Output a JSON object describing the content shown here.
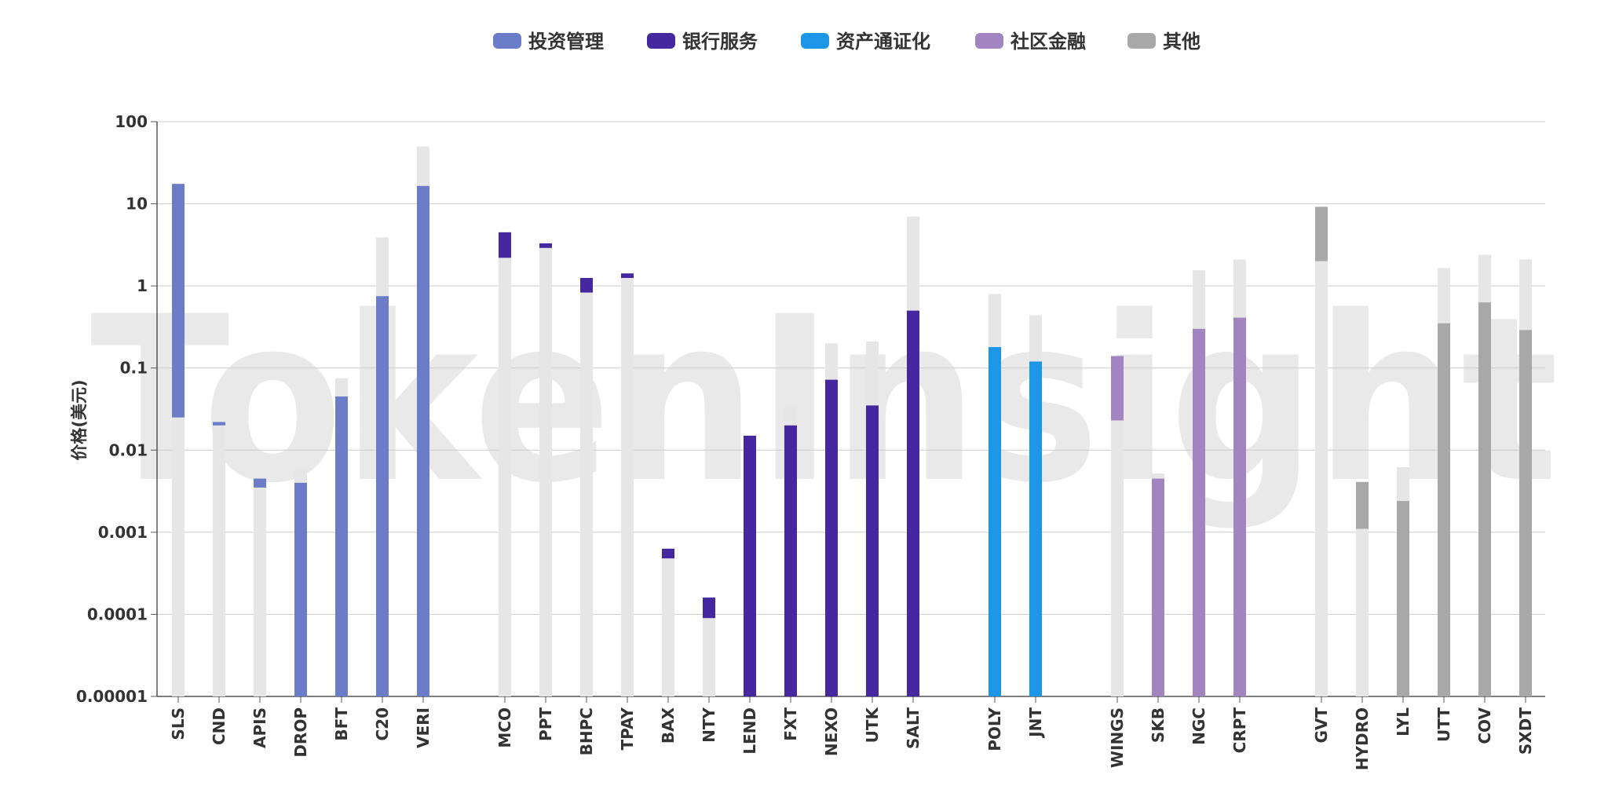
{
  "watermark": "TokenInsight",
  "chart_data": {
    "type": "bar",
    "scale": "log",
    "ylabel": "价格(美元)",
    "ylim": [
      1e-05,
      100
    ],
    "yticks": [
      {
        "value": 100,
        "label": "100"
      },
      {
        "value": 10,
        "label": "10"
      },
      {
        "value": 1,
        "label": "1"
      },
      {
        "value": 0.1,
        "label": "0.1"
      },
      {
        "value": 0.01,
        "label": "0.01"
      },
      {
        "value": 0.001,
        "label": "0.001"
      },
      {
        "value": 0.0001,
        "label": "0.0001"
      },
      {
        "value": 1e-05,
        "label": "0.00001"
      }
    ],
    "grid": true,
    "legend_position": "top",
    "groups": [
      {
        "name": "投资管理",
        "color": "#6b7dc8"
      },
      {
        "name": "银行服务",
        "color": "#4527a0"
      },
      {
        "name": "资产通证化",
        "color": "#1e96e8"
      },
      {
        "name": "社区金融",
        "color": "#a285c0"
      },
      {
        "name": "其他",
        "color": "#a8a8a8"
      }
    ],
    "background_bar_color": "#e6e6e6",
    "tokens": [
      {
        "label": "SLS",
        "group": 0,
        "low": 0.025,
        "high": 17.5
      },
      {
        "label": "CND",
        "group": 0,
        "low": 0.02,
        "high": 0.022
      },
      {
        "label": "APIS",
        "group": 0,
        "low": 0.0035,
        "high": 0.0045
      },
      {
        "label": "DROP",
        "group": 0,
        "high": 0.004,
        "peak": 0.006
      },
      {
        "label": "BFT",
        "group": 0,
        "high": 0.045,
        "peak": 0.075
      },
      {
        "label": "C20",
        "group": 0,
        "high": 0.75,
        "peak": 3.9
      },
      {
        "label": "VERI",
        "group": 0,
        "high": 16.5,
        "peak": 50
      },
      {
        "label": "MCO",
        "group": 1,
        "low": 2.2,
        "high": 4.5
      },
      {
        "label": "PPT",
        "group": 1,
        "low": 2.9,
        "high": 3.3
      },
      {
        "label": "BHPC",
        "group": 1,
        "low": 0.83,
        "high": 1.25
      },
      {
        "label": "TPAY",
        "group": 1,
        "low": 1.25,
        "high": 1.42
      },
      {
        "label": "BAX",
        "group": 1,
        "low": 0.00048,
        "high": 0.00063
      },
      {
        "label": "NTY",
        "group": 1,
        "low": 9e-05,
        "high": 0.00016
      },
      {
        "label": "LEND",
        "group": 1,
        "high": 0.015
      },
      {
        "label": "FXT",
        "group": 1,
        "high": 0.02,
        "peak": 0.035
      },
      {
        "label": "NEXO",
        "group": 1,
        "high": 0.072,
        "peak": 0.2
      },
      {
        "label": "UTK",
        "group": 1,
        "high": 0.035,
        "peak": 0.21
      },
      {
        "label": "SALT",
        "group": 1,
        "high": 0.5,
        "peak": 7
      },
      {
        "label": "POLY",
        "group": 2,
        "high": 0.18,
        "peak": 0.8
      },
      {
        "label": "JNT",
        "group": 2,
        "high": 0.12,
        "peak": 0.44
      },
      {
        "label": "WINGS",
        "group": 3,
        "low": 0.023,
        "high": 0.14
      },
      {
        "label": "SKB",
        "group": 3,
        "high": 0.0045,
        "peak": 0.0052
      },
      {
        "label": "NGC",
        "group": 3,
        "high": 0.3,
        "peak": 1.55
      },
      {
        "label": "CRPT",
        "group": 3,
        "high": 0.41,
        "peak": 2.1
      },
      {
        "label": "GVT",
        "group": 4,
        "low": 2.0,
        "high": 9.2
      },
      {
        "label": "HYDRO",
        "group": 4,
        "low": 0.0011,
        "high": 0.0041
      },
      {
        "label": "LYL",
        "group": 4,
        "high": 0.0024,
        "peak": 0.0062
      },
      {
        "label": "UTT",
        "group": 4,
        "high": 0.35,
        "peak": 1.65
      },
      {
        "label": "COV",
        "group": 4,
        "high": 0.63,
        "peak": 2.4
      },
      {
        "label": "SXDT",
        "group": 4,
        "high": 0.29,
        "peak": 2.1
      }
    ]
  }
}
